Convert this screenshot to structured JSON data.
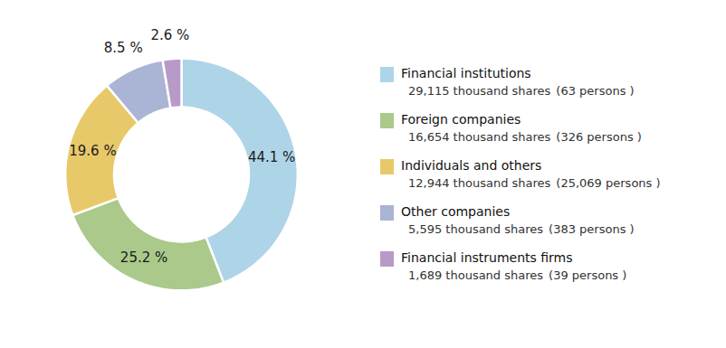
{
  "chart_data": {
    "type": "pie",
    "categories": [
      "Financial institutions",
      "Foreign companies",
      "Individuals and others",
      "Other companies",
      "Financial instruments firms"
    ],
    "values": [
      44.1,
      25.2,
      19.6,
      8.5,
      2.6
    ],
    "value_labels": [
      "44.1 %",
      "25.2 %",
      "19.6 %",
      "8.5 %",
      "2.6 %"
    ],
    "colors": [
      "#aed4e8",
      "#aac98a",
      "#e8c96a",
      "#aab4d4",
      "#b89ac8"
    ],
    "data_labels": true,
    "legend": "right",
    "shares": [
      29115,
      16654,
      12944,
      5595,
      1689
    ],
    "shares_labels": [
      "29,115 thousand shares",
      "16,654 thousand shares",
      "12,944 thousand shares",
      "5,595 thousand shares",
      "1,689 thousand shares"
    ],
    "persons": [
      63,
      326,
      25069,
      383,
      39
    ],
    "persons_labels": [
      "(63 persons )",
      "(326 persons )",
      "(25,069 persons )",
      "(383 persons )",
      "(39 persons )"
    ]
  }
}
